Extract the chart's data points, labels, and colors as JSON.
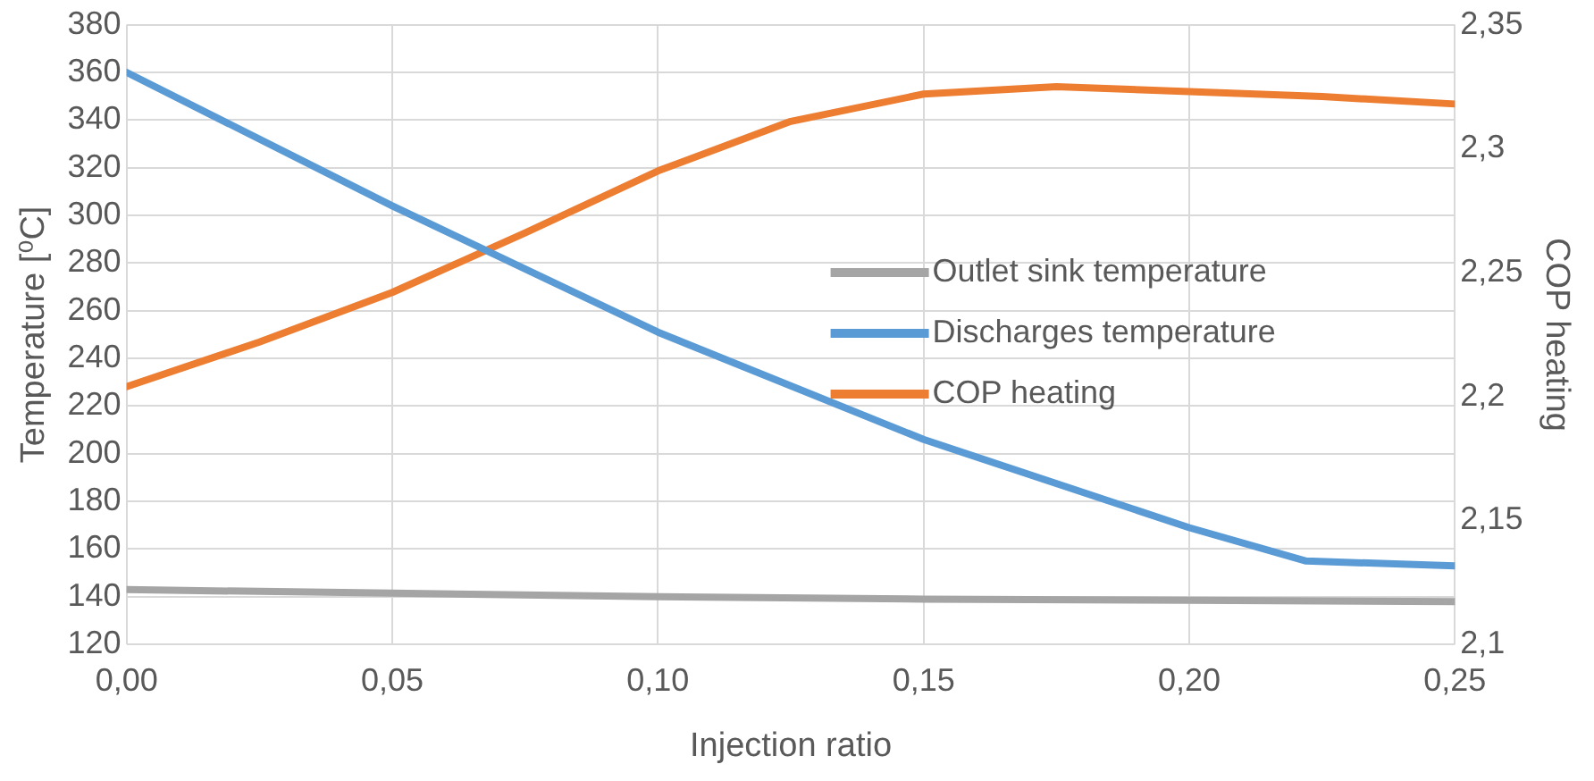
{
  "chart_data": {
    "type": "line",
    "xlabel": "Injection ratio",
    "ylabel": "Temperature [⁰C]",
    "y2label": "COP heating",
    "xlim": [
      0,
      0.25
    ],
    "xticks": [
      {
        "value": 0,
        "label": "0,00"
      },
      {
        "value": 0.05,
        "label": "0,05"
      },
      {
        "value": 0.1,
        "label": "0,10"
      },
      {
        "value": 0.15,
        "label": "0,15"
      },
      {
        "value": 0.2,
        "label": "0,20"
      },
      {
        "value": 0.25,
        "label": "0,25"
      }
    ],
    "ylim": [
      120,
      380
    ],
    "yticks": [
      120,
      140,
      160,
      180,
      200,
      220,
      240,
      260,
      280,
      300,
      320,
      340,
      360,
      380
    ],
    "y2lim": [
      2.1,
      2.35
    ],
    "y2ticks": [
      {
        "value": 2.1,
        "label": "2,1"
      },
      {
        "value": 2.15,
        "label": "2,15"
      },
      {
        "value": 2.2,
        "label": "2,2"
      },
      {
        "value": 2.25,
        "label": "2,25"
      },
      {
        "value": 2.3,
        "label": "2,3"
      },
      {
        "value": 2.35,
        "label": "2,35"
      }
    ],
    "grid": true,
    "legend": "right",
    "marker": "none",
    "line_style": "solid",
    "series": [
      {
        "name": "Outlet sink temperature",
        "color": "#a5a5a5",
        "x": [
          0,
          0.05,
          0.1,
          0.15,
          0.2,
          0.25
        ],
        "values": [
          143,
          141.5,
          140,
          139,
          138.5,
          138
        ]
      },
      {
        "name": "Discharges temperature",
        "color": "#5b9bd5",
        "x": [
          0,
          0.05,
          0.1,
          0.15,
          0.2,
          0.222,
          0.25
        ],
        "values": [
          360,
          304,
          251,
          206,
          169,
          155,
          153
        ]
      },
      {
        "name": "COP heating",
        "color": "#ed7d31",
        "axis": "y2",
        "x": [
          0,
          0.025,
          0.05,
          0.075,
          0.1,
          0.125,
          0.15,
          0.175,
          0.2,
          0.225,
          0.25
        ],
        "values": [
          2.204,
          2.222,
          2.242,
          2.266,
          2.291,
          2.311,
          2.322,
          2.325,
          2.323,
          2.321,
          2.318
        ]
      }
    ]
  }
}
